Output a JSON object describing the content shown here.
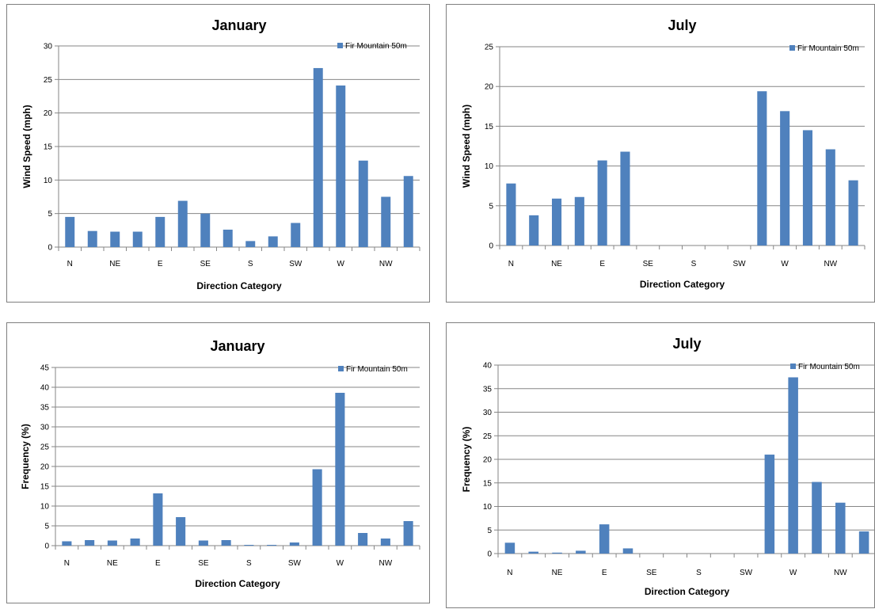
{
  "colors": {
    "bar": "#4f81bd",
    "grid": "#868686",
    "axis": "#868686"
  },
  "chart_data": [
    {
      "type": "bar",
      "title": "January",
      "xlabel": "Direction Category",
      "ylabel": "Wind Speed (mph)",
      "ylim": [
        0,
        30
      ],
      "ystep": 5,
      "grid": true,
      "legend_position": "top-right",
      "categories": [
        "N",
        "",
        "NE",
        "",
        "E",
        "",
        "SE",
        "",
        "S",
        "",
        "SW",
        "",
        "W",
        "",
        "NW",
        ""
      ],
      "series": [
        {
          "name": "Fir Mountain 50m",
          "values": [
            4.5,
            2.4,
            2.3,
            2.3,
            4.5,
            6.9,
            5.0,
            2.6,
            0.9,
            1.6,
            3.6,
            26.7,
            24.1,
            12.9,
            7.5,
            10.6
          ]
        }
      ]
    },
    {
      "type": "bar",
      "title": "July",
      "xlabel": "Direction Category",
      "ylabel": "Wind Speed (mph)",
      "ylim": [
        0,
        25
      ],
      "ystep": 5,
      "grid": true,
      "legend_position": "top-right",
      "categories": [
        "N",
        "",
        "NE",
        "",
        "E",
        "",
        "SE",
        "",
        "S",
        "",
        "SW",
        "",
        "W",
        "",
        "NW",
        ""
      ],
      "series": [
        {
          "name": "Fir Mountain 50m",
          "values": [
            7.8,
            3.8,
            5.9,
            6.1,
            10.7,
            11.8,
            0,
            0,
            0,
            0,
            0,
            19.4,
            16.9,
            14.5,
            12.1,
            8.2
          ]
        }
      ]
    },
    {
      "type": "bar",
      "title": "January",
      "xlabel": "Direction Category",
      "ylabel": "Frequency (%)",
      "ylim": [
        0,
        45
      ],
      "ystep": 5,
      "grid": true,
      "legend_position": "top-right",
      "categories": [
        "N",
        "",
        "NE",
        "",
        "E",
        "",
        "SE",
        "",
        "S",
        "",
        "SW",
        "",
        "W",
        "",
        "NW",
        ""
      ],
      "series": [
        {
          "name": "Fir Mountain 50m",
          "values": [
            1.1,
            1.4,
            1.3,
            1.8,
            13.2,
            7.2,
            1.3,
            1.4,
            0.2,
            0.2,
            0.8,
            19.3,
            38.6,
            3.2,
            1.8,
            6.2
          ]
        }
      ]
    },
    {
      "type": "bar",
      "title": "July",
      "xlabel": "Direction Category",
      "ylabel": "Frequency (%)",
      "ylim": [
        0,
        40
      ],
      "ystep": 5,
      "grid": true,
      "legend_position": "top-right",
      "categories": [
        "N",
        "",
        "NE",
        "",
        "E",
        "",
        "SE",
        "",
        "S",
        "",
        "SW",
        "",
        "W",
        "",
        "NW",
        ""
      ],
      "series": [
        {
          "name": "Fir Mountain 50m",
          "values": [
            2.3,
            0.4,
            0.2,
            0.6,
            6.2,
            1.1,
            0,
            0,
            0,
            0,
            0,
            21.0,
            37.4,
            15.2,
            10.8,
            4.7
          ]
        }
      ]
    }
  ]
}
